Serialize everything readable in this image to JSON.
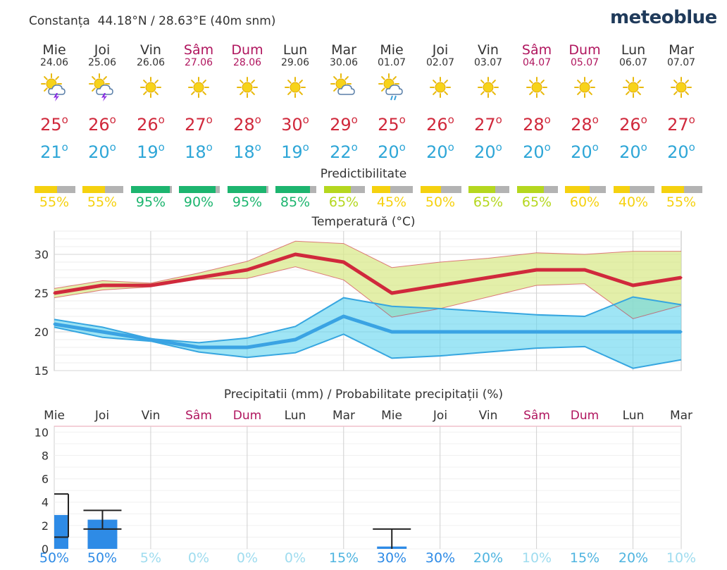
{
  "header": {
    "location": "Constanța",
    "coords": "44.18°N / 28.63°E (40m snm)",
    "brand": "meteoblue"
  },
  "colors": {
    "max_temp": "#d0293c",
    "min_temp": "#2ea6d7",
    "weekend": "#b0155e",
    "precip_bar": "#2e8be6",
    "pred_high": "#1db56f",
    "pred_mid": "#b5d71f",
    "pred_low": "#f5d10f"
  },
  "days": [
    {
      "name": "Mie",
      "date": "24.06",
      "icon": "sun-cloud-thunder-icon",
      "max": "25",
      "min": "21",
      "weekend": false,
      "pred": "55%",
      "pred_level": "low",
      "pred_value": 55,
      "precip_prob": "50%"
    },
    {
      "name": "Joi",
      "date": "25.06",
      "icon": "sun-cloud-thunder-icon",
      "max": "26",
      "min": "20",
      "weekend": false,
      "pred": "55%",
      "pred_level": "low",
      "pred_value": 55,
      "precip_prob": "50%"
    },
    {
      "name": "Vin",
      "date": "26.06",
      "icon": "sun-icon",
      "max": "26",
      "min": "19",
      "weekend": false,
      "pred": "95%",
      "pred_level": "high",
      "pred_value": 95,
      "precip_prob": "5%"
    },
    {
      "name": "Sâm",
      "date": "27.06",
      "icon": "sun-icon",
      "max": "27",
      "min": "18",
      "weekend": true,
      "pred": "90%",
      "pred_level": "high",
      "pred_value": 90,
      "precip_prob": "0%"
    },
    {
      "name": "Dum",
      "date": "28.06",
      "icon": "sun-icon",
      "max": "28",
      "min": "18",
      "weekend": true,
      "pred": "95%",
      "pred_level": "high",
      "pred_value": 95,
      "precip_prob": "0%"
    },
    {
      "name": "Lun",
      "date": "29.06",
      "icon": "sun-icon",
      "max": "30",
      "min": "19",
      "weekend": false,
      "pred": "85%",
      "pred_level": "high",
      "pred_value": 85,
      "precip_prob": "0%"
    },
    {
      "name": "Mar",
      "date": "30.06",
      "icon": "sun-cloud-icon",
      "max": "29",
      "min": "22",
      "weekend": false,
      "pred": "65%",
      "pred_level": "mid",
      "pred_value": 65,
      "precip_prob": "15%"
    },
    {
      "name": "Mie",
      "date": "01.07",
      "icon": "sun-cloud-rain-icon",
      "max": "25",
      "min": "20",
      "weekend": false,
      "pred": "45%",
      "pred_level": "low",
      "pred_value": 45,
      "precip_prob": "30%"
    },
    {
      "name": "Joi",
      "date": "02.07",
      "icon": "sun-icon",
      "max": "26",
      "min": "20",
      "weekend": false,
      "pred": "50%",
      "pred_level": "low",
      "pred_value": 50,
      "precip_prob": "30%"
    },
    {
      "name": "Vin",
      "date": "03.07",
      "icon": "sun-icon",
      "max": "27",
      "min": "20",
      "weekend": false,
      "pred": "65%",
      "pred_level": "mid",
      "pred_value": 65,
      "precip_prob": "20%"
    },
    {
      "name": "Sâm",
      "date": "04.07",
      "icon": "sun-icon",
      "max": "28",
      "min": "20",
      "weekend": true,
      "pred": "65%",
      "pred_level": "mid",
      "pred_value": 65,
      "precip_prob": "10%"
    },
    {
      "name": "Dum",
      "date": "05.07",
      "icon": "sun-icon",
      "max": "28",
      "min": "20",
      "weekend": true,
      "pred": "60%",
      "pred_level": "low",
      "pred_value": 60,
      "precip_prob": "15%"
    },
    {
      "name": "Lun",
      "date": "06.07",
      "icon": "sun-icon",
      "max": "26",
      "min": "20",
      "weekend": false,
      "pred": "40%",
      "pred_level": "low",
      "pred_value": 40,
      "precip_prob": "20%"
    },
    {
      "name": "Mar",
      "date": "07.07",
      "icon": "sun-icon",
      "max": "27",
      "min": "20",
      "weekend": false,
      "pred": "55%",
      "pred_level": "low",
      "pred_value": 55,
      "precip_prob": "10%"
    }
  ],
  "chart_data": [
    {
      "type": "line",
      "title": "Temperatură (°C)",
      "ylim": [
        15,
        33
      ],
      "yticks": [
        15,
        20,
        25,
        30
      ],
      "grid": true,
      "series": [
        {
          "values": [
            25,
            26,
            26,
            27,
            28,
            30,
            29,
            25,
            26,
            27,
            28,
            28,
            26,
            27
          ],
          "band_high": [
            25.6,
            26.6,
            26.3,
            27.6,
            29.1,
            31.7,
            31.4,
            28.3,
            29.0,
            29.5,
            30.2,
            30.0,
            30.4,
            30.4
          ],
          "band_low": [
            24.4,
            25.4,
            25.8,
            26.8,
            26.9,
            28.4,
            26.7,
            21.9,
            23.0,
            24.5,
            26.0,
            26.2,
            21.7,
            23.4
          ]
        },
        {
          "values": [
            21,
            20,
            19,
            18,
            18,
            19,
            22,
            20,
            20,
            20,
            20,
            20,
            20,
            20
          ],
          "band_high": [
            21.6,
            20.6,
            19.1,
            18.6,
            19.2,
            20.7,
            24.4,
            23.3,
            23.0,
            22.6,
            22.2,
            22.0,
            24.5,
            23.5
          ],
          "band_low": [
            20.6,
            19.3,
            18.8,
            17.4,
            16.7,
            17.3,
            19.7,
            16.6,
            16.9,
            17.4,
            17.9,
            18.1,
            15.3,
            16.4
          ]
        }
      ]
    },
    {
      "type": "bar",
      "title": "Precipitatii (mm) / Probabilitate precipitații (%)",
      "categories": [
        "Mie",
        "Joi",
        "Vin",
        "Sâm",
        "Dum",
        "Lun",
        "Mar",
        "Mie",
        "Joi",
        "Vin",
        "Sâm",
        "Dum",
        "Lun",
        "Mar"
      ],
      "ylim": [
        0,
        10.5
      ],
      "yticks": [
        0,
        2,
        4,
        6,
        8,
        10
      ],
      "grid": true,
      "series": [
        {
          "values": [
            2.9,
            2.5,
            0,
            0,
            0,
            0,
            0,
            0.2,
            0,
            0,
            0,
            0,
            0,
            0
          ],
          "range_high": [
            4.7,
            3.3,
            0,
            0,
            0,
            0,
            0,
            1.7,
            0,
            0,
            0,
            0,
            0,
            0
          ],
          "range_low": [
            1.0,
            1.7,
            0,
            0,
            0,
            0,
            0,
            0,
            0,
            0,
            0,
            0,
            0,
            0
          ]
        }
      ],
      "probabilities": [
        "50%",
        "50%",
        "5%",
        "0%",
        "0%",
        "0%",
        "15%",
        "30%",
        "30%",
        "20%",
        "10%",
        "15%",
        "20%",
        "10%"
      ]
    }
  ],
  "pred_title": "Predictibilitate"
}
